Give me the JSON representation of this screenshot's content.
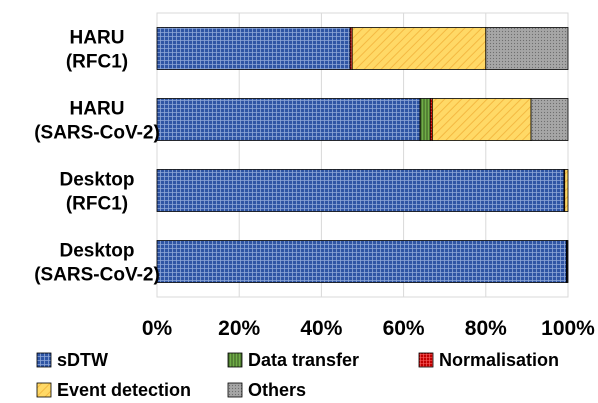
{
  "chart_data": {
    "type": "bar",
    "orientation": "horizontal",
    "stacked": true,
    "percent": true,
    "categories": [
      [
        "HARU",
        "(RFC1)"
      ],
      [
        "HARU",
        "(SARS-CoV-2)"
      ],
      [
        "Desktop",
        "(RFC1)"
      ],
      [
        "Desktop",
        "(SARS-CoV-2)"
      ]
    ],
    "series": [
      {
        "name": "sDTW",
        "color": "#2F55A4",
        "pattern": "grid",
        "values": [
          47,
          64,
          99,
          99.6
        ]
      },
      {
        "name": "Data transfer",
        "color": "#70AD47",
        "pattern": "vlines",
        "values": [
          0,
          2.5,
          0,
          0
        ]
      },
      {
        "name": "Normalisation",
        "color": "#C00000",
        "pattern": "grid",
        "values": [
          0.5,
          0.5,
          0.2,
          0.1
        ]
      },
      {
        "name": "Event detection",
        "color": "#FFD966",
        "pattern": "diag",
        "values": [
          32.5,
          24,
          0.8,
          0.1
        ]
      },
      {
        "name": "Others",
        "color": "#A6A6A6",
        "pattern": "dots",
        "values": [
          20,
          9,
          0,
          0.2
        ]
      }
    ],
    "xlim": [
      0,
      100
    ],
    "xticks": [
      "0%",
      "20%",
      "40%",
      "60%",
      "80%",
      "100%"
    ],
    "grid": true,
    "legend_position": "bottom",
    "legend_rows": [
      [
        "sDTW",
        "Data transfer",
        "Normalisation"
      ],
      [
        "Event detection",
        "Others"
      ]
    ]
  }
}
